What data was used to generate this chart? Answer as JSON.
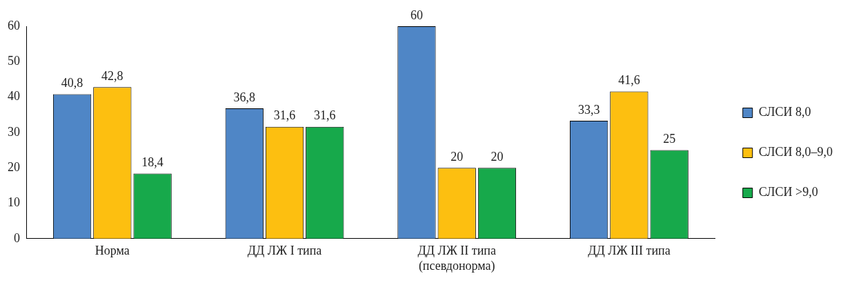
{
  "chart_data": {
    "type": "bar",
    "categories": [
      "Норма",
      "ДД ЛЖ I типа",
      "ДД ЛЖ II типа\n(псевдонорма)",
      "ДД ЛЖ III типа"
    ],
    "series": [
      {
        "name": "СЛСИ 8,0",
        "color": "#4f86c6",
        "values": [
          40.8,
          36.8,
          60,
          33.3
        ],
        "value_labels": [
          "40,8",
          "36,8",
          "60",
          "33,3"
        ]
      },
      {
        "name": "СЛСИ 8,0–9,0",
        "color": "#fdbf10",
        "values": [
          42.8,
          31.6,
          20,
          41.6
        ],
        "value_labels": [
          "42,8",
          "31,6",
          "20",
          "41,6"
        ]
      },
      {
        "name": "СЛСИ >9,0",
        "color": "#17a94b",
        "values": [
          18.4,
          31.6,
          20,
          25
        ],
        "value_labels": [
          "18,4",
          "31,6",
          "20",
          "25"
        ]
      }
    ],
    "ylim": [
      0,
      60
    ],
    "yticks": [
      0,
      10,
      20,
      30,
      40,
      50,
      60
    ],
    "grid": false,
    "legend": "right"
  }
}
